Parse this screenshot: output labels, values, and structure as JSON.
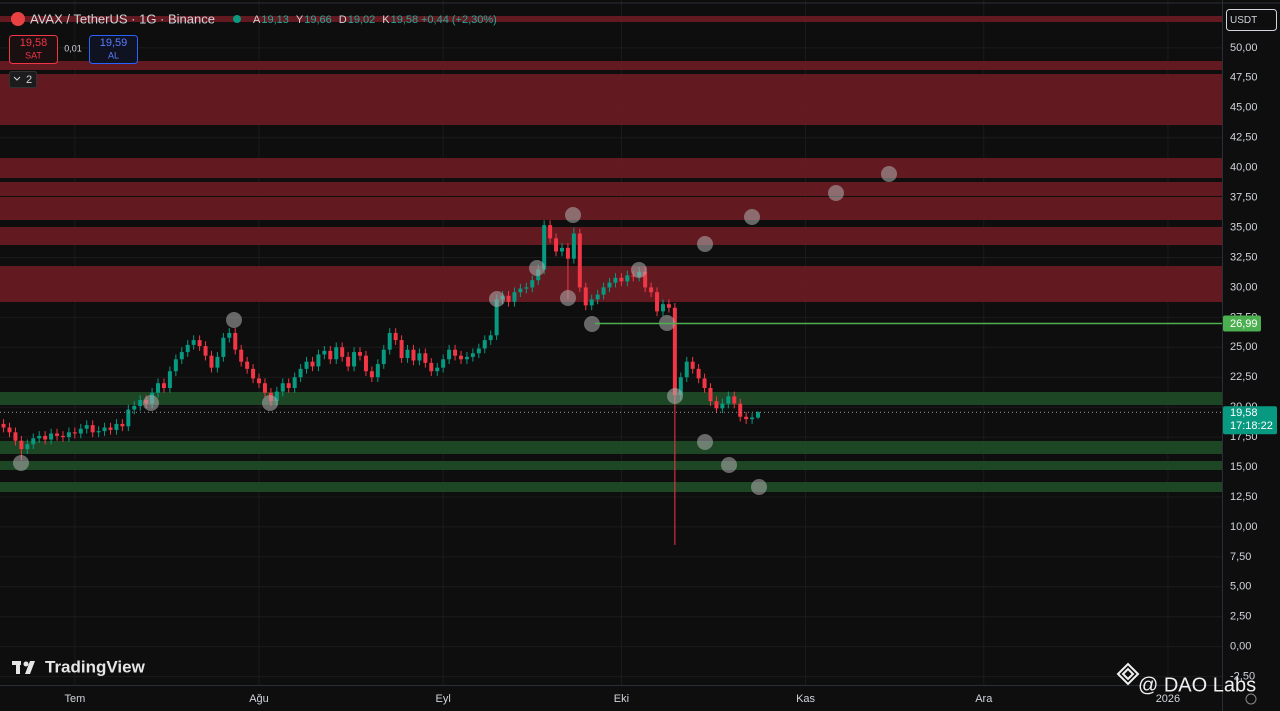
{
  "header": {
    "symbol": "AVAX / TetherUS · 1G · Binance",
    "ohlc": [
      {
        "key": "A",
        "value": "19,13"
      },
      {
        "key": "Y",
        "value": "19,66"
      },
      {
        "key": "D",
        "value": "19,02"
      },
      {
        "key": "K",
        "value": "19,58"
      }
    ],
    "change": "+0,44 (+2,30%)"
  },
  "trade": {
    "sell_price": "19,58",
    "sell": "SAT",
    "spread": "0,01",
    "buy_price": "19,59",
    "buy": "AL"
  },
  "indicators": "2",
  "currency": "USDT",
  "brand": "TradingView",
  "watermark": "@ DAO Labs",
  "chart_data": {
    "type": "candlestick",
    "x": [
      -12,
      -11,
      -10,
      -9,
      -8,
      -7,
      -6,
      -5,
      -4,
      -3,
      -2,
      -1,
      0,
      1,
      2,
      3,
      4,
      5,
      6,
      7,
      8,
      9,
      10,
      11,
      12,
      13,
      14,
      15,
      16,
      17,
      18,
      19,
      20,
      21,
      22,
      23,
      24,
      25,
      26,
      27,
      28,
      29,
      30,
      31,
      32,
      33,
      34,
      35,
      36,
      37,
      38,
      39,
      40,
      41,
      42,
      43,
      44,
      45,
      46,
      47,
      48,
      49,
      50,
      51,
      52,
      53,
      54,
      55,
      56,
      57,
      58,
      59,
      60,
      61,
      62,
      63,
      64,
      65,
      66,
      67,
      68,
      69,
      70,
      71,
      72,
      73,
      74,
      75,
      76,
      77,
      78,
      79,
      80,
      81,
      82,
      83,
      84,
      85,
      86,
      87,
      88,
      89,
      90,
      91,
      92,
      93,
      94,
      95,
      96,
      97,
      98,
      99,
      100,
      101,
      102,
      103,
      104,
      105,
      106,
      107,
      108,
      109,
      110,
      111,
      112,
      113,
      114,
      115
    ],
    "open": [
      18.6,
      18.3,
      17.9,
      17.2,
      16.5,
      16.9,
      17.4,
      17.6,
      17.3,
      17.8,
      17.6,
      17.5,
      17.9,
      17.8,
      18.2,
      18.5,
      17.9,
      18.0,
      18.3,
      18.1,
      18.6,
      18.4,
      19.8,
      20.1,
      20.6,
      20.3,
      21.2,
      22.0,
      21.6,
      23.0,
      24.0,
      24.6,
      25.2,
      25.6,
      25.1,
      24.3,
      23.3,
      24.2,
      25.8,
      26.2,
      24.8,
      23.8,
      23.2,
      22.4,
      22.0,
      21.2,
      20.5,
      21.3,
      22.0,
      21.6,
      22.5,
      23.2,
      23.8,
      23.4,
      24.4,
      24.7,
      24.0,
      25.0,
      24.2,
      23.4,
      24.6,
      24.3,
      23.0,
      22.5,
      23.6,
      24.8,
      26.2,
      25.6,
      24.1,
      24.8,
      23.9,
      24.5,
      23.7,
      23.0,
      23.3,
      24.0,
      24.8,
      24.3,
      24.0,
      24.2,
      24.5,
      24.9,
      25.6,
      26.0,
      29.0,
      29.3,
      28.8,
      29.6,
      29.9,
      30.0,
      30.6,
      31.5,
      35.2,
      34.1,
      33.0,
      33.3,
      32.4,
      34.5,
      30.0,
      28.5,
      29.0,
      29.4,
      30.0,
      30.4,
      30.8,
      30.5,
      31.0,
      30.9,
      31.3,
      30.0,
      29.6,
      28.0,
      28.6,
      28.3,
      21.0,
      22.5,
      23.8,
      23.2,
      22.4,
      21.6,
      20.5,
      19.9,
      20.3,
      20.9,
      20.3,
      19.2,
      19.0,
      19.13
    ],
    "high": [
      19.0,
      18.7,
      18.3,
      17.6,
      17.3,
      17.8,
      18.0,
      18.0,
      18.2,
      18.2,
      18.0,
      18.3,
      18.3,
      18.6,
      18.9,
      18.9,
      18.4,
      18.7,
      18.7,
      19.0,
      19.0,
      20.2,
      20.5,
      21.0,
      21.0,
      21.6,
      22.4,
      22.4,
      23.4,
      24.4,
      25.0,
      25.6,
      26.0,
      26.0,
      25.5,
      24.7,
      24.6,
      26.2,
      26.6,
      26.6,
      25.2,
      24.2,
      23.6,
      22.8,
      22.4,
      21.6,
      21.7,
      22.4,
      22.4,
      22.9,
      23.6,
      24.2,
      24.2,
      24.8,
      25.1,
      25.1,
      25.4,
      25.4,
      24.6,
      25.0,
      25.0,
      24.7,
      23.4,
      24.0,
      25.2,
      26.6,
      26.6,
      26.0,
      25.2,
      25.2,
      24.9,
      24.9,
      24.1,
      23.7,
      24.4,
      25.2,
      25.2,
      24.7,
      24.6,
      24.9,
      25.3,
      26.0,
      26.4,
      29.4,
      29.7,
      29.7,
      30.0,
      30.3,
      30.4,
      31.0,
      31.9,
      35.6,
      35.6,
      34.5,
      33.7,
      33.7,
      35.0,
      34.9,
      30.4,
      29.4,
      29.8,
      30.4,
      30.8,
      31.2,
      31.2,
      31.4,
      31.4,
      31.7,
      31.7,
      30.4,
      30.0,
      29.0,
      29.0,
      28.7,
      22.9,
      24.2,
      24.2,
      23.6,
      22.8,
      22.0,
      20.9,
      20.7,
      21.3,
      21.3,
      20.7,
      19.6,
      19.5,
      19.66
    ],
    "low": [
      17.9,
      17.5,
      16.8,
      15.6,
      16.1,
      16.5,
      17.0,
      16.9,
      16.9,
      17.2,
      17.1,
      17.1,
      17.4,
      17.4,
      17.8,
      17.5,
      17.5,
      17.6,
      17.7,
      17.7,
      18.0,
      18.0,
      19.4,
      19.7,
      19.9,
      19.9,
      20.8,
      21.2,
      21.2,
      22.6,
      23.6,
      24.2,
      24.8,
      24.7,
      23.9,
      22.9,
      22.9,
      23.8,
      25.4,
      24.4,
      23.4,
      22.8,
      22.0,
      21.6,
      20.8,
      20.1,
      20.1,
      20.9,
      21.2,
      21.2,
      22.1,
      22.8,
      23.0,
      23.0,
      24.0,
      23.6,
      23.6,
      23.8,
      23.0,
      23.0,
      23.9,
      22.6,
      22.1,
      22.1,
      23.2,
      24.4,
      25.2,
      23.7,
      23.7,
      23.5,
      23.5,
      23.3,
      22.6,
      22.6,
      22.9,
      23.6,
      23.9,
      23.6,
      23.6,
      23.8,
      24.1,
      24.5,
      25.2,
      25.6,
      28.6,
      28.4,
      28.4,
      29.2,
      29.5,
      29.6,
      30.2,
      31.1,
      33.7,
      32.6,
      32.6,
      29.0,
      32.0,
      29.6,
      28.1,
      28.1,
      28.6,
      29.0,
      29.6,
      30.0,
      30.1,
      30.1,
      30.5,
      30.5,
      29.6,
      29.2,
      27.6,
      27.6,
      27.9,
      8.5,
      20.6,
      22.1,
      22.8,
      22.0,
      21.2,
      20.1,
      19.5,
      19.5,
      19.9,
      19.9,
      18.8,
      18.6,
      18.6,
      19.02
    ],
    "close": [
      18.3,
      17.9,
      17.2,
      16.5,
      16.9,
      17.4,
      17.6,
      17.3,
      17.8,
      17.6,
      17.5,
      17.9,
      17.8,
      18.2,
      18.5,
      17.9,
      18.0,
      18.3,
      18.1,
      18.6,
      18.4,
      19.8,
      20.1,
      20.6,
      20.3,
      21.2,
      22.0,
      21.6,
      23.0,
      24.0,
      24.6,
      25.2,
      25.6,
      25.1,
      24.3,
      23.3,
      24.2,
      25.8,
      26.2,
      24.8,
      23.8,
      23.2,
      22.4,
      22.0,
      21.2,
      20.5,
      21.3,
      22.0,
      21.6,
      22.5,
      23.2,
      23.8,
      23.4,
      24.4,
      24.7,
      24.0,
      25.0,
      24.2,
      23.4,
      24.6,
      24.3,
      23.0,
      22.5,
      23.6,
      24.8,
      26.2,
      25.6,
      24.1,
      24.8,
      23.9,
      24.5,
      23.7,
      23.0,
      23.3,
      24.0,
      24.8,
      24.3,
      24.0,
      24.2,
      24.5,
      24.9,
      25.6,
      26.0,
      29.0,
      29.3,
      28.8,
      29.6,
      29.9,
      30.0,
      30.6,
      31.5,
      35.2,
      34.1,
      33.0,
      33.3,
      32.4,
      34.5,
      30.0,
      28.5,
      29.0,
      29.4,
      30.0,
      30.4,
      30.8,
      30.5,
      31.0,
      30.9,
      31.3,
      30.0,
      29.6,
      28.0,
      28.6,
      28.3,
      21.0,
      22.5,
      23.8,
      23.2,
      22.4,
      21.6,
      20.5,
      19.9,
      20.3,
      20.9,
      20.3,
      19.2,
      19.0,
      19.13,
      19.58
    ],
    "up_color": "#089981",
    "down_color": "#f23645",
    "xlim": [
      -12.6,
      193.1
    ],
    "xticks": [
      {
        "value": 0,
        "label": "Tem"
      },
      {
        "value": 31,
        "label": "Ağu"
      },
      {
        "value": 62,
        "label": "Eyl"
      },
      {
        "value": 92,
        "label": "Eki"
      },
      {
        "value": 123,
        "label": "Kas"
      },
      {
        "value": 153,
        "label": "Ara"
      },
      {
        "value": 184,
        "label": "2026"
      }
    ],
    "ylim": [
      -3.2,
      54.0
    ],
    "yticks": [
      {
        "value": -2.5,
        "label": "-2,50"
      },
      {
        "value": 0,
        "label": "0,00"
      },
      {
        "value": 2.5,
        "label": "2,50"
      },
      {
        "value": 5,
        "label": "5,00"
      },
      {
        "value": 7.5,
        "label": "7,50"
      },
      {
        "value": 10,
        "label": "10,00"
      },
      {
        "value": 12.5,
        "label": "12,50"
      },
      {
        "value": 15,
        "label": "15,00"
      },
      {
        "value": 17.5,
        "label": "17,50"
      },
      {
        "value": 20,
        "label": "20,00"
      },
      {
        "value": 22.5,
        "label": "22,50"
      },
      {
        "value": 25,
        "label": "25,00"
      },
      {
        "value": 27.5,
        "label": "27,50"
      },
      {
        "value": 30,
        "label": "30,00"
      },
      {
        "value": 32.5,
        "label": "32,50"
      },
      {
        "value": 35,
        "label": "35,00"
      },
      {
        "value": 37.5,
        "label": "37,50"
      },
      {
        "value": 40,
        "label": "40,00"
      },
      {
        "value": 42.5,
        "label": "42,50"
      },
      {
        "value": 45,
        "label": "45,00"
      },
      {
        "value": 47.5,
        "label": "47,50"
      },
      {
        "value": 50,
        "label": "50,00"
      }
    ],
    "grid": true,
    "last_price": {
      "value": 19.58,
      "label": "19,58"
    },
    "countdown": "17:18:22",
    "level": {
      "value": 26.99,
      "label": "26,99",
      "color": "#4caf50"
    }
  }
}
